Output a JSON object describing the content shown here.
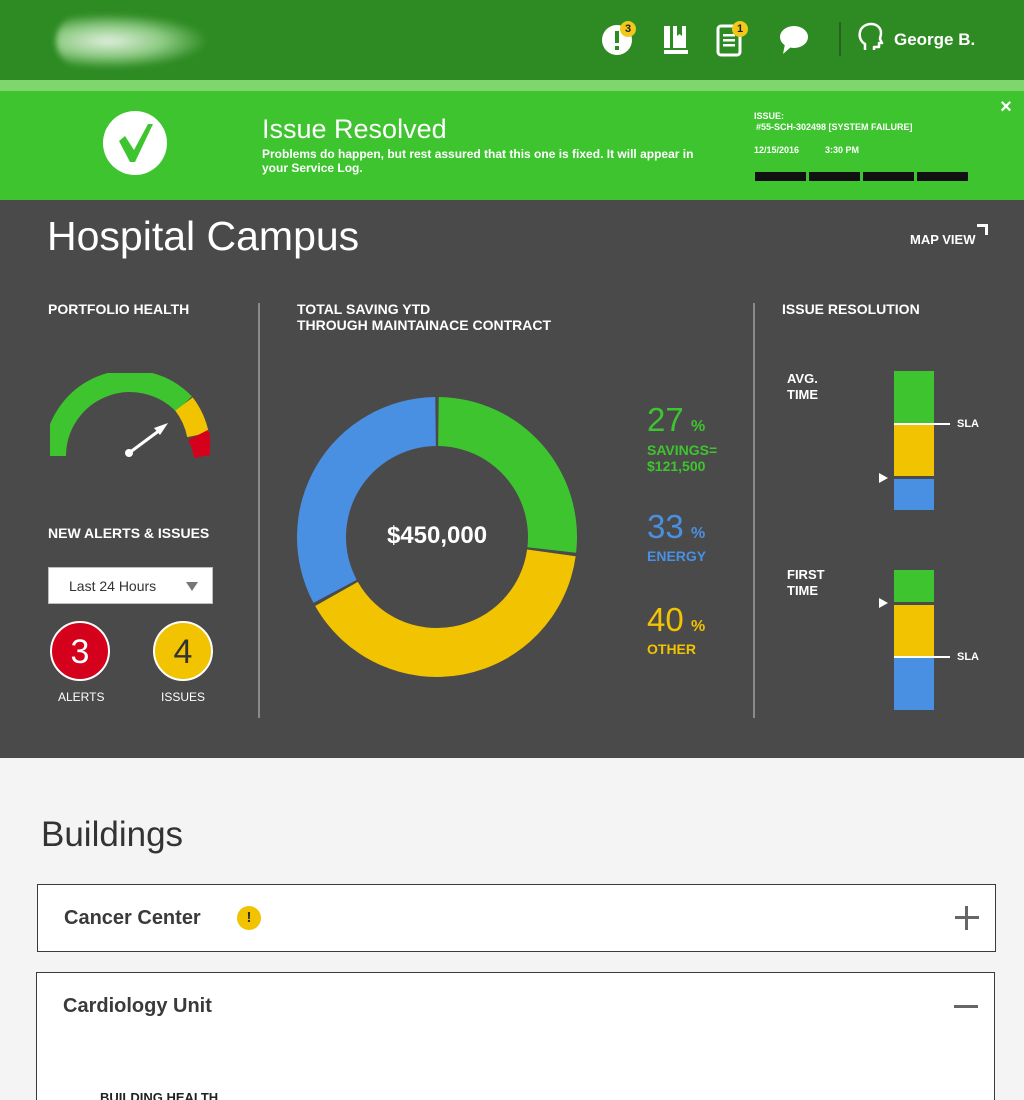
{
  "header": {
    "nav_icons": [
      {
        "name": "alerts-icon",
        "badge": "3"
      },
      {
        "name": "book-icon",
        "badge": ""
      },
      {
        "name": "document-icon",
        "badge": "1"
      },
      {
        "name": "chat-icon",
        "badge": ""
      }
    ],
    "user": {
      "name": "George B."
    }
  },
  "banner": {
    "title": "Issue Resolved",
    "message": "Problems do happen, but rest assured that this one is fixed. It will appear in your Service Log.",
    "issue_label": "ISSUE:",
    "issue_id": "#55-SCH-302498  [SYSTEM FAILURE]",
    "date": "12/15/2016",
    "time": "3:30 PM",
    "progress_segments": 4,
    "close_label": "×"
  },
  "campus": {
    "title": "Hospital Campus",
    "map_view_label": "MAP VIEW",
    "portfolio_health": {
      "label": "PORTFOLIO HEALTH",
      "gauge_value": 0.8,
      "colors": {
        "good": "#3ec42f",
        "warn": "#f2c300",
        "bad": "#d5001c"
      }
    },
    "new_alerts": {
      "label": "NEW ALERTS & ISSUES",
      "timeframe": "Last 24 Hours",
      "alerts_count": "3",
      "alerts_label": "ALERTS",
      "issues_count": "4",
      "issues_label": "ISSUES"
    },
    "savings": {
      "label_line1": "TOTAL SAVING YTD",
      "label_line2": "THROUGH MAINTAINACE CONTRACT",
      "total": "$450,000",
      "breakdown": [
        {
          "percent": "27",
          "sign": "%",
          "label_line1": "SAVINGS=",
          "label_line2": "$121,500",
          "color": "#3ec42f"
        },
        {
          "percent": "33",
          "sign": "%",
          "label_line1": "ENERGY",
          "label_line2": "",
          "color": "#4a90e2"
        },
        {
          "percent": "40",
          "sign": "%",
          "label_line1": "OTHER",
          "label_line2": "",
          "color": "#f2c300"
        }
      ]
    },
    "issue_resolution": {
      "label": "ISSUE RESOLUTION",
      "avg_time_line1": "AVG.",
      "avg_time_line2": "TIME",
      "first_time_line1": "FIRST",
      "first_time_line2": "TIME",
      "sla_label": "SLA"
    }
  },
  "chart_data": {
    "type": "pie",
    "categories": [
      "SAVINGS",
      "OTHER",
      "ENERGY"
    ],
    "values": [
      27,
      40,
      33
    ],
    "colors": [
      "#3ec42f",
      "#f2c300",
      "#4a90e2"
    ],
    "center_label": "$450,000"
  },
  "buildings": {
    "title": "Buildings",
    "items": [
      {
        "name": "Cancer Center",
        "has_warning": true,
        "warning_glyph": "!",
        "expanded": false
      },
      {
        "name": "Cardiology Unit",
        "has_warning": false,
        "expanded": true
      }
    ],
    "building_health_label": "BUILDING HEALTH"
  }
}
